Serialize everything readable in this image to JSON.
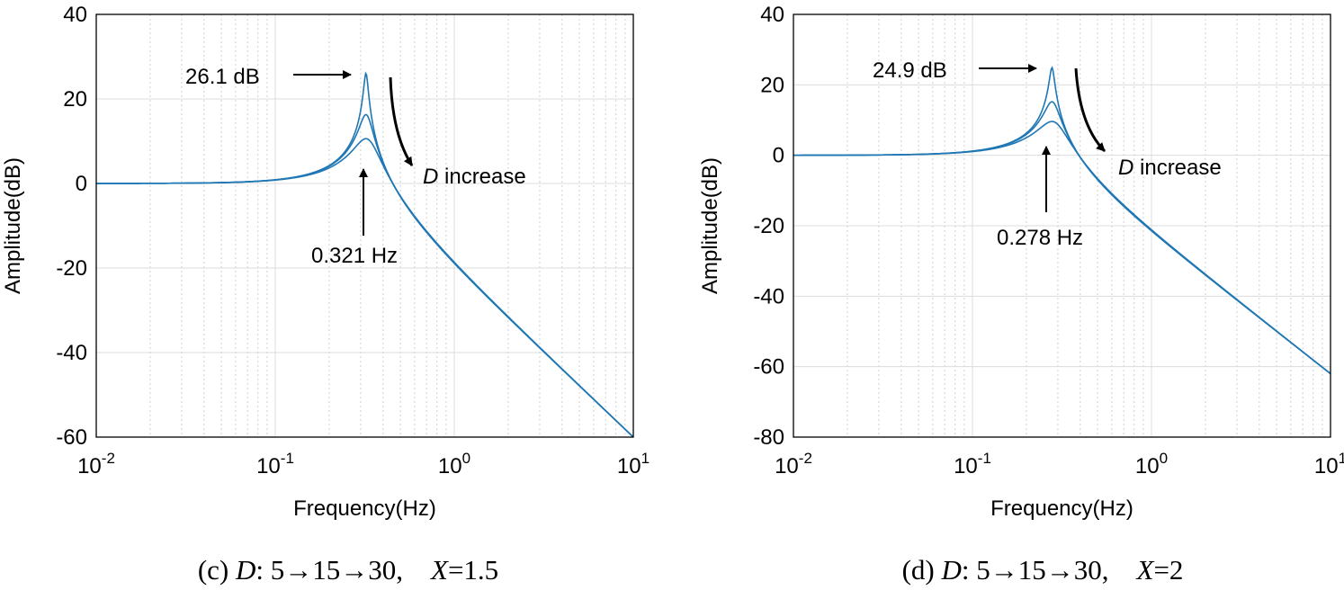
{
  "chart_data": [
    {
      "type": "line",
      "xscale": "log",
      "xlabel": "Frequency(Hz)",
      "ylabel": "Amplitude(dB)",
      "xlim": [
        0.01,
        10
      ],
      "ylim": [
        -60,
        40
      ],
      "yticks": [
        -60,
        -40,
        -20,
        0,
        20,
        40
      ],
      "ytick_labels": [
        "-60",
        "-40",
        "-20",
        "0",
        "20",
        "40"
      ],
      "xtick_labels": [
        {
          "base": "10",
          "exp": "-2"
        },
        {
          "base": "10",
          "exp": "-1"
        },
        {
          "base": "10",
          "exp": "0"
        },
        {
          "base": "10",
          "exp": "1"
        }
      ],
      "grid": true,
      "line_color": "#1f77b4",
      "series": [
        {
          "name": "D=5",
          "peak_freq_hz": 0.321,
          "peak_db": 26.1,
          "hf_db_at_10hz": -60
        },
        {
          "name": "D=15",
          "peak_freq_hz": 0.321,
          "peak_db": 16.3,
          "hf_db_at_10hz": -60
        },
        {
          "name": "D=30",
          "peak_freq_hz": 0.321,
          "peak_db": 10.6,
          "hf_db_at_10hz": -60
        }
      ],
      "annotations": {
        "peak_label": "26.1 dB",
        "freq_label": "0.321 Hz",
        "trend_prefix": "D",
        "trend_suffix": " increase"
      },
      "caption": {
        "prefix": "(c) ",
        "var": "D",
        "sequence": ": 5→15→30,    ",
        "var2": "X",
        "value": "=1.5"
      }
    },
    {
      "type": "line",
      "xscale": "log",
      "xlabel": "Frequency(Hz)",
      "ylabel": "Amplitude(dB)",
      "xlim": [
        0.01,
        10
      ],
      "ylim": [
        -80,
        40
      ],
      "yticks": [
        -80,
        -60,
        -40,
        -20,
        0,
        20,
        40
      ],
      "ytick_labels": [
        "-80",
        "-60",
        "-40",
        "-20",
        "0",
        "20",
        "40"
      ],
      "xtick_labels": [
        {
          "base": "10",
          "exp": "-2"
        },
        {
          "base": "10",
          "exp": "-1"
        },
        {
          "base": "10",
          "exp": "0"
        },
        {
          "base": "10",
          "exp": "1"
        }
      ],
      "grid": true,
      "line_color": "#1f77b4",
      "series": [
        {
          "name": "D=5",
          "peak_freq_hz": 0.278,
          "peak_db": 24.9,
          "hf_db_at_10hz": -62
        },
        {
          "name": "D=15",
          "peak_freq_hz": 0.278,
          "peak_db": 15.2,
          "hf_db_at_10hz": -62
        },
        {
          "name": "D=30",
          "peak_freq_hz": 0.278,
          "peak_db": 9.6,
          "hf_db_at_10hz": -62
        }
      ],
      "annotations": {
        "peak_label": "24.9 dB",
        "freq_label": "0.278 Hz",
        "trend_prefix": "D",
        "trend_suffix": " increase"
      },
      "caption": {
        "prefix": "(d) ",
        "var": "D",
        "sequence": ": 5→15→30,    ",
        "var2": "X",
        "value": "=2"
      }
    }
  ]
}
